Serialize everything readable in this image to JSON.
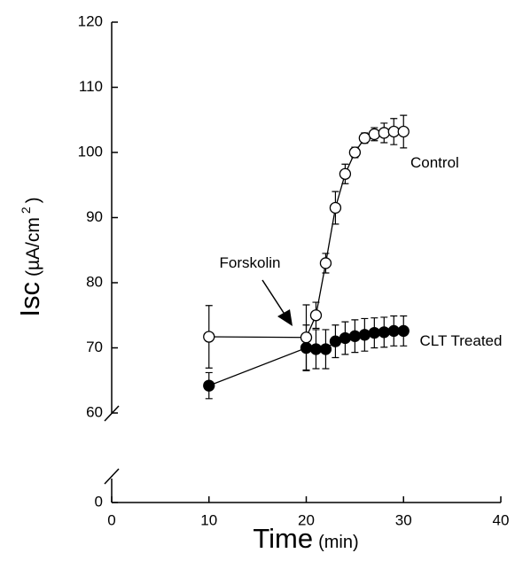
{
  "chart_data": {
    "type": "line",
    "xlabel": "Time",
    "xlabel_unit": "(min)",
    "ylabel": "Isc",
    "ylabel_unit": "(µA/cm",
    "ylabel_sup": "2",
    "ylabel_close": ")",
    "annotations": [
      "Forskolin"
    ],
    "x": [
      10,
      20,
      21,
      22,
      23,
      24,
      25,
      26,
      27,
      28,
      29,
      30
    ],
    "xlim": [
      0,
      40
    ],
    "xticks": [
      0,
      10,
      20,
      30,
      40
    ],
    "ylim": [
      0,
      120
    ],
    "y_break": [
      4,
      59
    ],
    "yticks": [
      0,
      60,
      70,
      80,
      90,
      100,
      110,
      120
    ],
    "series": [
      {
        "name": "Control",
        "marker_fill": "#ffffff",
        "color": "#000000",
        "values": [
          71.7,
          71.6,
          75,
          83,
          91.5,
          96.7,
          100,
          102.2,
          102.8,
          103,
          103.2,
          103.2
        ],
        "errors": [
          4.8,
          5,
          2,
          1.5,
          2.5,
          1.5,
          0.8,
          0.8,
          1,
          1.5,
          2,
          2.5
        ]
      },
      {
        "name": "CLT Treated",
        "marker_fill": "#000000",
        "color": "#000000",
        "values": [
          64.2,
          70,
          69.8,
          69.8,
          71,
          71.5,
          71.8,
          72,
          72.3,
          72.4,
          72.6,
          72.6
        ],
        "errors": [
          2,
          3.5,
          3,
          3,
          2.5,
          2.5,
          2.5,
          2.5,
          2.3,
          2.3,
          2.3,
          2.3
        ]
      }
    ]
  }
}
